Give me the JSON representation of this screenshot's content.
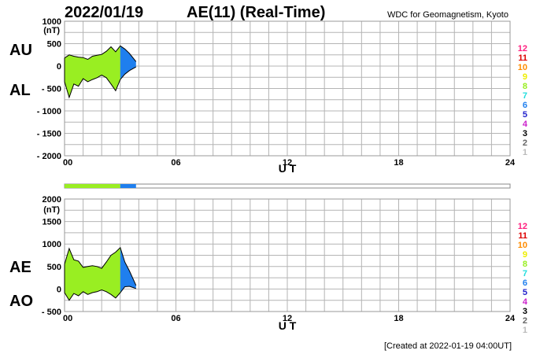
{
  "header": {
    "date": "2022/01/19",
    "title": "AE(11) (Real-Time)",
    "source": "WDC for Geomagnetism, Kyoto"
  },
  "footer": {
    "created": "[Created at 2022-01-19 04:00UT]"
  },
  "colors": {
    "hour_0_3": "#99ee22",
    "hour_3_4": "#1f7fee",
    "grid": "#b4b4b4",
    "outline": "#000000"
  },
  "legend": {
    "items": [
      {
        "label": "12",
        "color": "#ff1f7f"
      },
      {
        "label": "11",
        "color": "#dd0000"
      },
      {
        "label": "10",
        "color": "#ff8c00"
      },
      {
        "label": "9",
        "color": "#eeee00"
      },
      {
        "label": "8",
        "color": "#99ee22"
      },
      {
        "label": "7",
        "color": "#22dddd"
      },
      {
        "label": "6",
        "color": "#1f7fee"
      },
      {
        "label": "5",
        "color": "#2222cc"
      },
      {
        "label": "4",
        "color": "#cc22cc"
      },
      {
        "label": "3",
        "color": "#000000"
      },
      {
        "label": "2",
        "color": "#666666"
      },
      {
        "label": "1",
        "color": "#bbbbbb"
      }
    ]
  },
  "progress": {
    "segments": [
      {
        "from_hour": 0,
        "to_hour": 3.0,
        "color": "#99ee22"
      },
      {
        "from_hour": 3.0,
        "to_hour": 3.85,
        "color": "#1f7fee"
      }
    ],
    "range_hours": [
      0,
      24
    ]
  },
  "chart_data": [
    {
      "type": "area",
      "panel": "AU/AL",
      "series_labels": [
        "AU",
        "AL"
      ],
      "unit": "(nT)",
      "xlabel": "U T",
      "xlim": [
        0,
        24
      ],
      "xticks": [
        0,
        6,
        12,
        18,
        24
      ],
      "xtick_labels": [
        "00",
        "06",
        "12",
        "18",
        "24"
      ],
      "ylim": [
        -2000,
        1000
      ],
      "yticks": [
        1000,
        500,
        0,
        -500,
        -1000,
        -1500,
        -2000
      ],
      "ytick_labels": [
        "1000",
        "500",
        "0",
        "- 500",
        "- 1000",
        "- 1500",
        "- 2000"
      ],
      "grid": true,
      "x": [
        0,
        0.25,
        0.5,
        0.75,
        1.0,
        1.25,
        1.5,
        1.75,
        2.0,
        2.25,
        2.5,
        2.75,
        3.0,
        3.25,
        3.5,
        3.85
      ],
      "upper": [
        180,
        250,
        220,
        200,
        190,
        150,
        220,
        240,
        260,
        330,
        430,
        320,
        450,
        380,
        280,
        100
      ],
      "lower": [
        -350,
        -700,
        -400,
        -450,
        -280,
        -350,
        -300,
        -260,
        -200,
        -260,
        -400,
        -550,
        -300,
        -180,
        -100,
        -20
      ]
    },
    {
      "type": "area",
      "panel": "AE/AO",
      "series_labels": [
        "AE",
        "AO"
      ],
      "unit": "(nT)",
      "xlabel": "U T",
      "xlim": [
        0,
        24
      ],
      "xticks": [
        0,
        6,
        12,
        18,
        24
      ],
      "xtick_labels": [
        "00",
        "06",
        "12",
        "18",
        "24"
      ],
      "ylim": [
        -500,
        2000
      ],
      "yticks": [
        2000,
        1500,
        1000,
        500,
        0,
        -500
      ],
      "ytick_labels": [
        "2000",
        "1500",
        "1000",
        "500",
        "0",
        "- 500"
      ],
      "grid": true,
      "x": [
        0,
        0.25,
        0.5,
        0.75,
        1.0,
        1.25,
        1.5,
        1.75,
        2.0,
        2.25,
        2.5,
        2.75,
        3.0,
        3.25,
        3.5,
        3.85
      ],
      "upper": [
        550,
        900,
        650,
        620,
        480,
        500,
        520,
        500,
        460,
        600,
        750,
        820,
        920,
        600,
        400,
        80
      ],
      "lower": [
        -80,
        -250,
        -100,
        -150,
        -60,
        -120,
        -80,
        -60,
        -20,
        -60,
        -120,
        -200,
        -80,
        50,
        60,
        10
      ]
    }
  ]
}
